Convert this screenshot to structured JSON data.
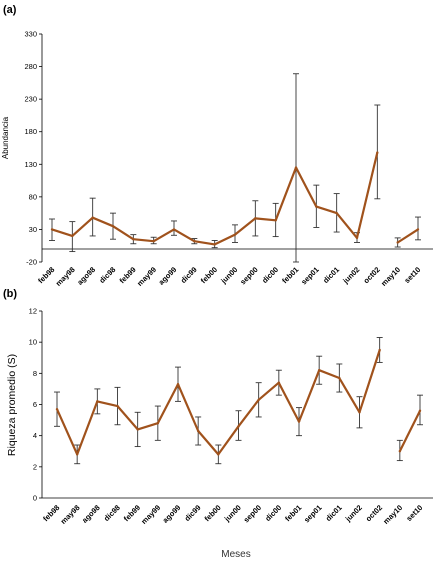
{
  "chart_data": [
    {
      "type": "line",
      "panel_label": "(a)",
      "ylabel": "Abundancia",
      "xlabel": "",
      "ylim": [
        -20,
        330
      ],
      "yticks": [
        -20,
        30,
        80,
        130,
        180,
        230,
        280,
        330
      ],
      "grid": false,
      "line_color": "#a0521c",
      "categories": [
        "feb98",
        "may98",
        "ago98",
        "dic98",
        "feb99",
        "may99",
        "ago99",
        "dic99",
        "feb00",
        "jun00",
        "sep00",
        "dic00",
        "feb01",
        "sep01",
        "dic01",
        "jun02",
        "oct02",
        "may10",
        "set10"
      ],
      "values": [
        30,
        20,
        48,
        35,
        15,
        12,
        30,
        12,
        7,
        22,
        47,
        44,
        125,
        65,
        55,
        17,
        148,
        10,
        30
      ],
      "err_low": [
        13,
        -4,
        20,
        15,
        8,
        8,
        21,
        8,
        2,
        10,
        20,
        19,
        -20,
        33,
        26,
        10,
        77,
        3,
        14
      ],
      "err_high": [
        46,
        42,
        78,
        55,
        22,
        18,
        43,
        16,
        13,
        37,
        74,
        70,
        269,
        98,
        85,
        25,
        221,
        17,
        49
      ],
      "segments": [
        [
          0,
          16
        ],
        [
          17,
          18
        ]
      ]
    },
    {
      "type": "line",
      "panel_label": "(b)",
      "ylabel": "Riqueza promedio (S)",
      "xlabel": "Meses",
      "ylim": [
        0,
        12
      ],
      "yticks": [
        0,
        2,
        4,
        6,
        8,
        10,
        12
      ],
      "grid": false,
      "line_color": "#a0521c",
      "categories": [
        "feb98",
        "may98",
        "ago98",
        "dic98",
        "feb99",
        "may99",
        "ago99",
        "dic99",
        "feb00",
        "jun00",
        "sep00",
        "dic00",
        "feb01",
        "sep01",
        "dic01",
        "jun02",
        "oct02",
        "may10",
        "set10"
      ],
      "values": [
        5.7,
        2.8,
        6.2,
        5.9,
        4.4,
        4.8,
        7.3,
        4.3,
        2.8,
        4.6,
        6.3,
        7.4,
        4.9,
        8.2,
        7.7,
        5.5,
        9.5,
        3.0,
        5.6
      ],
      "err_low": [
        4.6,
        2.2,
        5.4,
        4.7,
        3.3,
        3.7,
        6.2,
        3.4,
        2.2,
        3.7,
        5.2,
        6.6,
        4.0,
        7.3,
        6.8,
        4.5,
        8.7,
        2.4,
        4.7
      ],
      "err_high": [
        6.8,
        3.4,
        7.0,
        7.1,
        5.5,
        5.9,
        8.4,
        5.2,
        3.4,
        5.6,
        7.4,
        8.2,
        5.8,
        9.1,
        8.6,
        6.5,
        10.3,
        3.7,
        6.6
      ],
      "segments": [
        [
          0,
          16
        ],
        [
          17,
          18
        ]
      ]
    }
  ]
}
